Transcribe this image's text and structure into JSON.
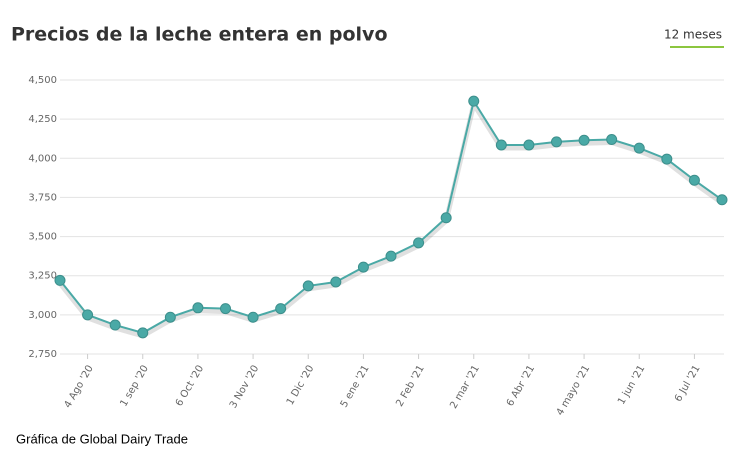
{
  "chart_data": {
    "type": "line",
    "title": "Precios de la leche entera en polvo",
    "range_tab": "12 meses",
    "source": "Gráfica de Global Dairy Trade",
    "categories": [
      null,
      "4 Ago '20",
      null,
      "1 sep '20",
      null,
      "6 Oct '20",
      null,
      "3 Nov '20",
      null,
      "1 Dic '20",
      null,
      "5 ene '21",
      null,
      "2 Feb '21",
      null,
      "2 mar '21",
      null,
      "6 Abr '21",
      null,
      "4 mayo '21",
      null,
      "1 jun '21",
      null,
      "6 Jul '21",
      null
    ],
    "values": [
      3220,
      3000,
      2935,
      2885,
      2985,
      3045,
      3040,
      2985,
      3040,
      3185,
      3210,
      3305,
      3375,
      3460,
      3620,
      4365,
      4085,
      4085,
      4105,
      4115,
      4120,
      4065,
      3995,
      3860,
      3735
    ],
    "color": "#4aa9a6",
    "ylim": [
      2750,
      4500
    ],
    "yticks": [
      {
        "value": 2750,
        "label": "2,750"
      },
      {
        "value": 3000,
        "label": "3,000"
      },
      {
        "value": 3250,
        "label": "3,250"
      },
      {
        "value": 3500,
        "label": "3,500"
      },
      {
        "value": 3750,
        "label": "3,750"
      },
      {
        "value": 4000,
        "label": "4,000"
      },
      {
        "value": 4250,
        "label": "4,250"
      },
      {
        "value": 4500,
        "label": "4,500"
      }
    ],
    "grid": true
  }
}
